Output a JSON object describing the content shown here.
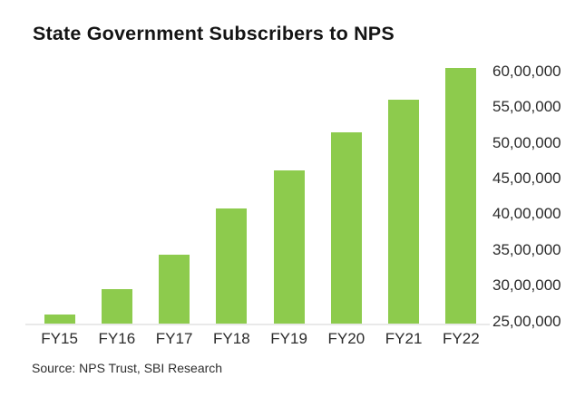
{
  "title": "State Government Subscribers to NPS",
  "source": "Source: NPS Trust, SBI Research",
  "colors": {
    "background": "#ffffff",
    "bar": "#8dcb4d",
    "title_text": "#141414",
    "axis_text": "#2b2b2b",
    "source_text": "#2e2e2e",
    "baseline": "#e9e9e9"
  },
  "chart_data": {
    "type": "bar",
    "title": "State Government Subscribers to NPS",
    "categories": [
      "FY15",
      "FY16",
      "FY17",
      "FY18",
      "FY19",
      "FY20",
      "FY21",
      "FY22"
    ],
    "values": [
      2600000,
      2950000,
      3440000,
      4080000,
      4620000,
      5150000,
      5600000,
      6050000
    ],
    "series_name": "State Government Subscribers to NPS",
    "xlabel": "",
    "ylabel": "",
    "y_axis_position": "right",
    "y_ticks": [
      {
        "value": 2500000,
        "label": "25,00,000"
      },
      {
        "value": 3000000,
        "label": "30,00,000"
      },
      {
        "value": 3500000,
        "label": "35,00,000"
      },
      {
        "value": 4000000,
        "label": "40,00,000"
      },
      {
        "value": 4500000,
        "label": "45,00,000"
      },
      {
        "value": 5000000,
        "label": "50,00,000"
      },
      {
        "value": 5500000,
        "label": "55,00,000"
      },
      {
        "value": 6000000,
        "label": "60,00,000"
      }
    ],
    "ylim": [
      2460000,
      6210000
    ],
    "grid": false,
    "legend_position": "none",
    "source": "Source: NPS Trust, SBI Research"
  }
}
